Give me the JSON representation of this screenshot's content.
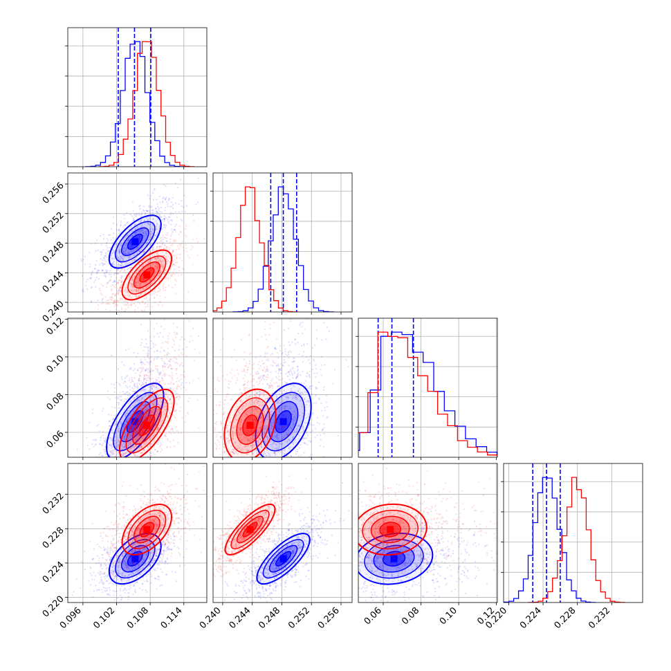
{
  "chart_data": {
    "type": "corner",
    "grid": true,
    "parameters": [
      {
        "ticks": [
          0.096,
          0.102,
          0.108,
          0.114
        ],
        "tick_labels": [
          "0.096",
          "0.102",
          "0.108",
          "0.114"
        ],
        "range": [
          0.0933,
          0.1181
        ]
      },
      {
        "ticks": [
          0.24,
          0.244,
          0.248,
          0.252,
          0.256
        ],
        "tick_labels": [
          "0.240",
          "0.244",
          "0.248",
          "0.252",
          "0.256"
        ],
        "range": [
          0.2387,
          0.2575
        ]
      },
      {
        "ticks": [
          0.06,
          0.08,
          0.1,
          0.12
        ],
        "tick_labels": [
          "0.06",
          "0.08",
          "0.10",
          "0.12"
        ],
        "range": [
          0.0468,
          0.1205
        ]
      },
      {
        "ticks": [
          0.22,
          0.224,
          0.228,
          0.232
        ],
        "tick_labels": [
          "0.220",
          "0.224",
          "0.228",
          "0.232"
        ],
        "range": [
          0.2194,
          0.2356
        ]
      }
    ],
    "series": [
      {
        "color": "#0000ff",
        "means": [
          0.1053,
          0.2482,
          0.0657,
          0.2245
        ],
        "sigmas": [
          0.0022,
          0.0017,
          0.0085,
          0.0014
        ],
        "quantiles": [
          [
            0.1023,
            0.1052,
            0.1081
          ],
          [
            0.2465,
            0.2482,
            0.25
          ],
          [
            0.0573,
            0.0646,
            0.076
          ],
          [
            0.2228,
            0.2244,
            0.226
          ]
        ],
        "correlations": [
          [
            1,
            0.65,
            0.6,
            0.5
          ],
          [
            0.65,
            1,
            0.3,
            0.75
          ],
          [
            0.6,
            0.3,
            1,
            0.1
          ],
          [
            0.5,
            0.75,
            0.1,
            1
          ]
        ]
      },
      {
        "color": "#ff0000",
        "means": [
          0.1074,
          0.2437,
          0.0637,
          0.2279
        ],
        "sigmas": [
          0.0021,
          0.0016,
          0.008,
          0.0014
        ],
        "quantiles": [],
        "correlations": [
          [
            1,
            0.65,
            0.6,
            0.5
          ],
          [
            0.65,
            1,
            0.2,
            0.8
          ],
          [
            0.6,
            0.2,
            1,
            0.05
          ],
          [
            0.5,
            0.8,
            0.05,
            1
          ]
        ]
      }
    ]
  }
}
